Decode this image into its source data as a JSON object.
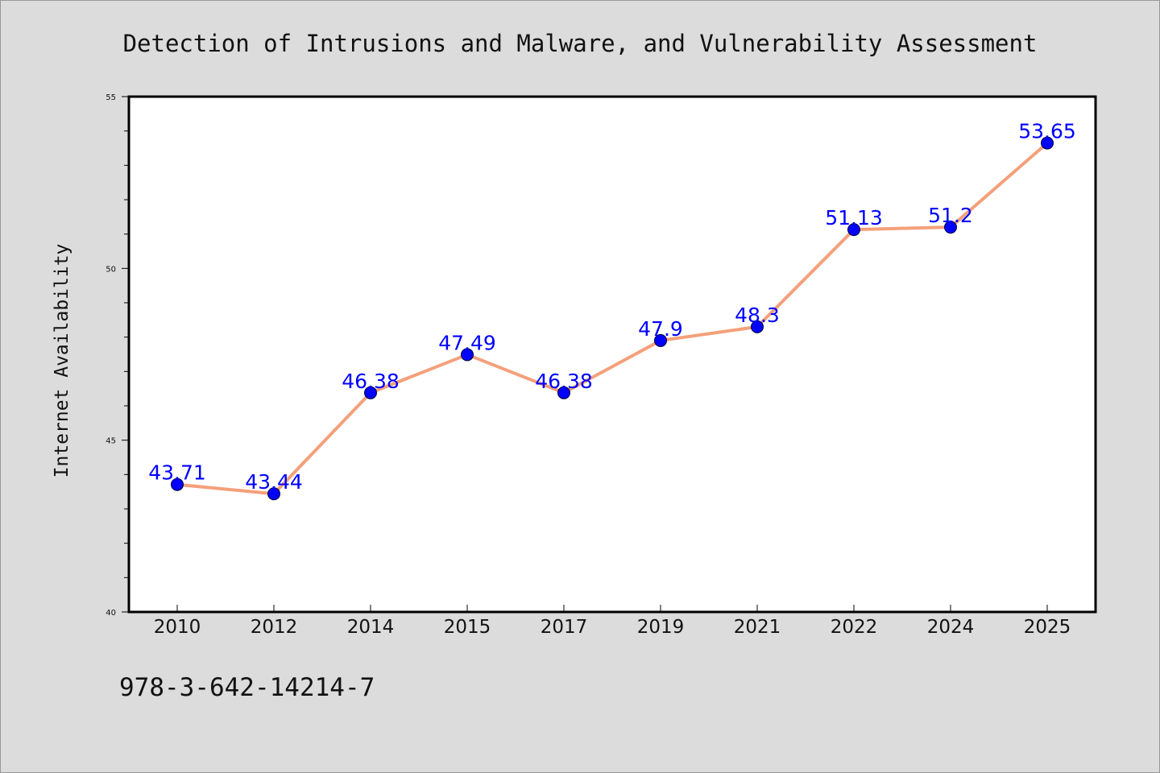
{
  "chart_data": {
    "type": "line",
    "title": "Detection of Intrusions and Malware, and Vulnerability Assessment",
    "ylabel": "Internet Availability",
    "xlabel": "",
    "categories": [
      "2010",
      "2012",
      "2014",
      "2015",
      "2017",
      "2019",
      "2021",
      "2022",
      "2024",
      "2025"
    ],
    "values": [
      43.71,
      43.44,
      46.38,
      47.49,
      46.38,
      47.9,
      48.3,
      51.13,
      51.2,
      53.65
    ],
    "data_labels": [
      "43.71",
      "43.44",
      "46.38",
      "47.49",
      "46.38",
      "47.9",
      "48.3",
      "51.13",
      "51.2",
      "53.65"
    ],
    "ylim": [
      40,
      55
    ],
    "yticks": [
      "40",
      "45",
      "50",
      "55"
    ],
    "grid": false,
    "legend": "none",
    "line_color": "#f4a07a",
    "marker_color": "#0000ff"
  },
  "footer": {
    "text": "978-3-642-14214-7"
  }
}
